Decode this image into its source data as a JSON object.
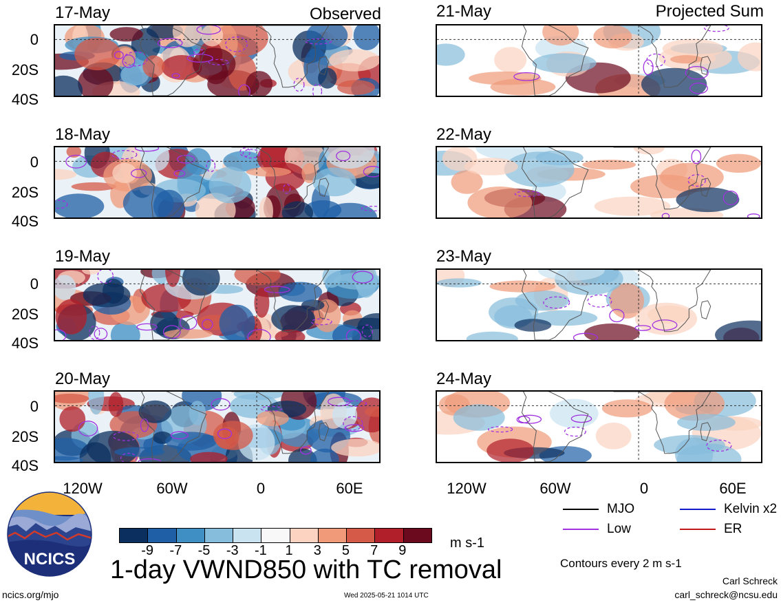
{
  "headings": {
    "observed": "Observed",
    "projected": "Projected Sum"
  },
  "left_dates": [
    "17-May",
    "18-May",
    "19-May",
    "20-May"
  ],
  "right_dates": [
    "21-May",
    "22-May",
    "23-May",
    "24-May"
  ],
  "y_ticks": [
    "0",
    "20S",
    "40S"
  ],
  "x_ticks": [
    "120W",
    "60W",
    "0",
    "60E"
  ],
  "colorbar": {
    "labels": [
      "-9",
      "-7",
      "-5",
      "-3",
      "-1",
      "1",
      "3",
      "5",
      "7",
      "9"
    ],
    "colors": [
      "#0b2f5e",
      "#1f5fa6",
      "#3f8fc5",
      "#86bcdc",
      "#c9e3f1",
      "#f8f8f8",
      "#fbd3c0",
      "#f09a79",
      "#d65a48",
      "#b01f2a",
      "#6b0a1e"
    ],
    "units": "m s-1"
  },
  "legend": [
    {
      "label": "MJO",
      "color": "#000000"
    },
    {
      "label": "Kelvin x2",
      "color": "#1018c8"
    },
    {
      "label": "Low",
      "color": "#a030e0"
    },
    {
      "label": "ER",
      "color": "#c01818"
    }
  ],
  "contour_note": "Contours every 2 m s-1",
  "main_title": "1-day VWND850 with TC removal",
  "logo_text": "NCICS",
  "footer": {
    "url": "ncics.org/mjo",
    "timestamp": "Wed 2025-05-21 1014 UTC",
    "author": "Carl Schreck",
    "email": "carl_schreck@ncsu.edu"
  }
}
